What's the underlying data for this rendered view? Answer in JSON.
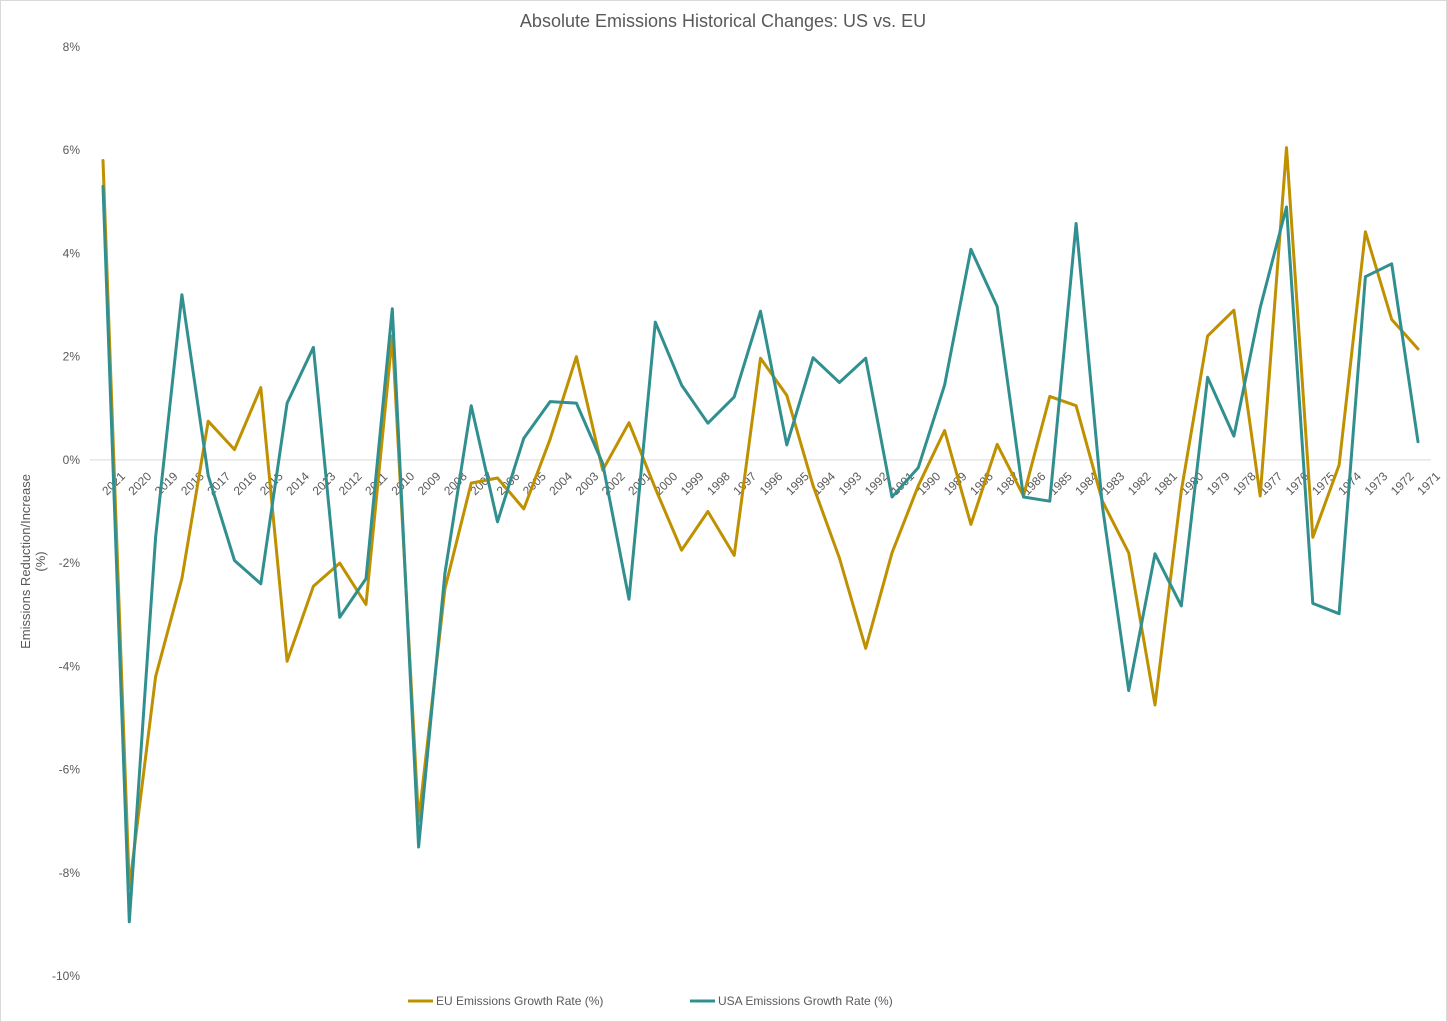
{
  "chart_data": {
    "type": "line",
    "title": "Absolute Emissions Historical Changes: US vs. EU",
    "ylabel": "Emissions Reduction/Increase (%)",
    "ylabel_lines": [
      "Emissions Reduction/Increase",
      "(%)"
    ],
    "xlabel": "",
    "ylim": [
      -10,
      8
    ],
    "yticks": [
      8,
      6,
      4,
      2,
      0,
      -2,
      -4,
      -6,
      -8,
      -10
    ],
    "ytick_labels": [
      "8%",
      "6%",
      "4%",
      "2%",
      "0%",
      "-2%",
      "-4%",
      "-6%",
      "-8%",
      "-10%"
    ],
    "grid": false,
    "legend_position": "bottom",
    "x": [
      "2021",
      "2020",
      "2019",
      "2018",
      "2017",
      "2016",
      "2015",
      "2014",
      "2013",
      "2012",
      "2011",
      "2010",
      "2009",
      "2008",
      "2007",
      "2006",
      "2005",
      "2004",
      "2003",
      "2002",
      "2001",
      "2000",
      "1999",
      "1998",
      "1997",
      "1996",
      "1995",
      "1994",
      "1993",
      "1992",
      "1991",
      "1990",
      "1989",
      "1988",
      "1987",
      "1986",
      "1985",
      "1984",
      "1983",
      "1982",
      "1981",
      "1980",
      "1979",
      "1978",
      "1977",
      "1976",
      "1975",
      "1974",
      "1973",
      "1972",
      "1971"
    ],
    "series": [
      {
        "name": "EU Emissions Growth Rate (%)",
        "color": "#bf9000",
        "values": [
          5.8,
          -8.3,
          -4.2,
          -2.3,
          0.75,
          0.2,
          1.4,
          -3.9,
          -2.45,
          -2.0,
          -2.8,
          2.4,
          -7.0,
          -2.5,
          -0.45,
          -0.35,
          -0.95,
          0.4,
          2.0,
          -0.2,
          0.72,
          -0.55,
          -1.75,
          -1.0,
          -1.85,
          1.97,
          1.25,
          -0.5,
          -1.9,
          -3.65,
          -1.8,
          -0.5,
          0.57,
          -1.25,
          0.3,
          -0.7,
          1.23,
          1.05,
          -0.8,
          -1.8,
          -4.75,
          -0.6,
          2.4,
          2.9,
          -0.7,
          6.05,
          -1.5,
          -0.1,
          4.42,
          2.72,
          2.15
        ]
      },
      {
        "name": "USA Emissions Growth Rate (%)",
        "color": "#31908f",
        "values": [
          5.3,
          -8.95,
          -1.5,
          3.2,
          -0.3,
          -1.95,
          -2.4,
          1.1,
          2.18,
          -3.05,
          -2.3,
          2.93,
          -7.5,
          -2.2,
          1.05,
          -1.2,
          0.42,
          1.13,
          1.1,
          -0.07,
          -2.7,
          2.67,
          1.45,
          0.71,
          1.22,
          2.88,
          0.29,
          1.98,
          1.5,
          1.97,
          -0.72,
          -0.15,
          1.45,
          4.08,
          2.97,
          -0.72,
          -0.8,
          4.58,
          -0.9,
          -4.47,
          -1.82,
          -2.83,
          1.6,
          0.46,
          2.95,
          4.9,
          -2.78,
          -2.98,
          3.55,
          3.8,
          0.35
        ]
      }
    ]
  }
}
